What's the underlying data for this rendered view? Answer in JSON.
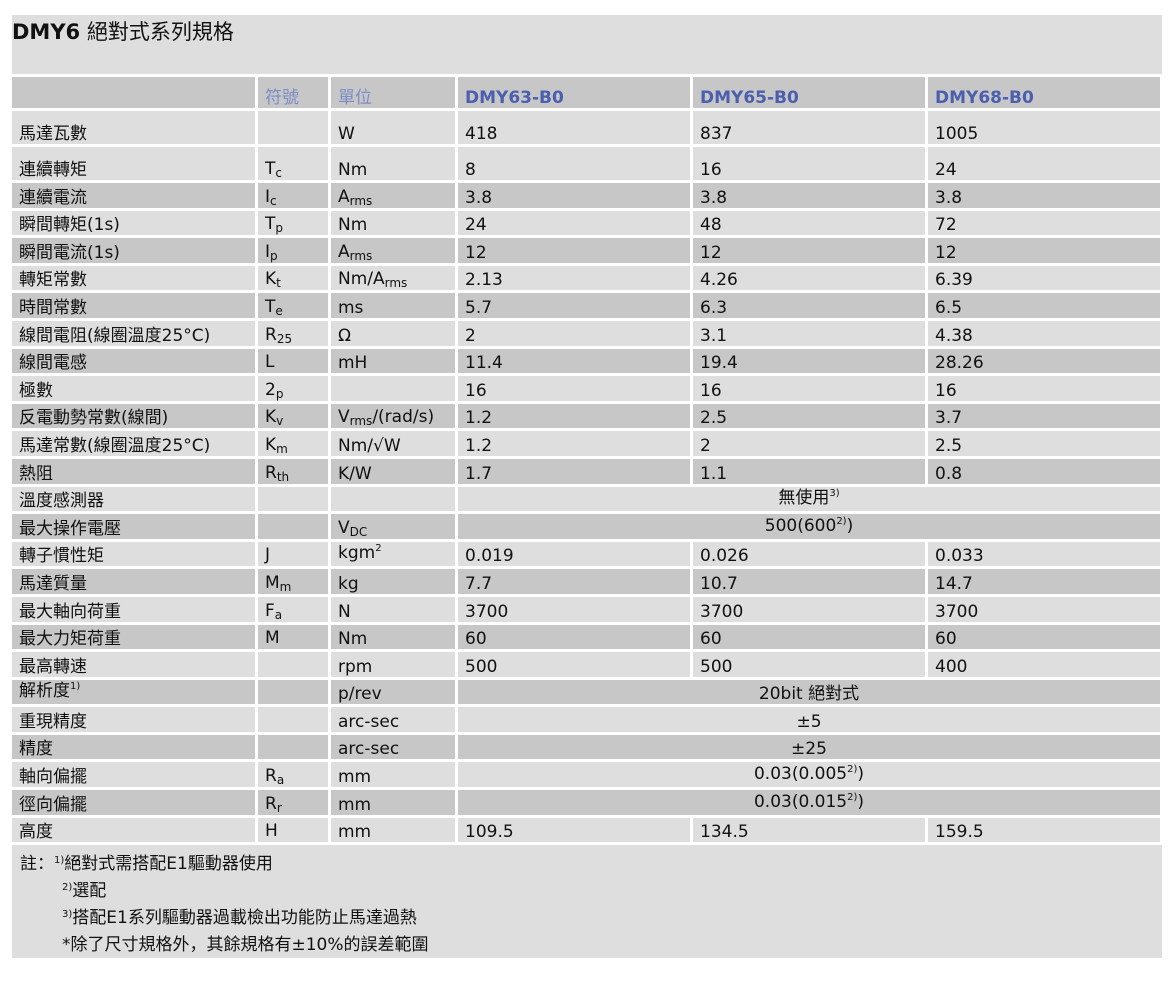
{
  "title": {
    "model": "DMY6",
    "text": "絕對式系列規格"
  },
  "header": {
    "symbol": "符號",
    "unit": "單位",
    "models": [
      "DMY63-B0",
      "DMY65-B0",
      "DMY68-B0"
    ]
  },
  "rows": [
    {
      "label": "馬達瓦數",
      "sym": "",
      "sym_sub": "",
      "unit": "W",
      "values": [
        "418",
        "837",
        "1005"
      ]
    },
    {
      "label": "連續轉矩",
      "sym": "T",
      "sym_sub": "c",
      "unit": "Nm",
      "values": [
        "8",
        "16",
        "24"
      ]
    },
    {
      "label": "連續電流",
      "sym": "I",
      "sym_sub": "c",
      "unit": "A",
      "unit_sub": "rms",
      "values": [
        "3.8",
        "3.8",
        "3.8"
      ]
    },
    {
      "label": "瞬間轉矩(1s)",
      "sym": "T",
      "sym_sub": "p",
      "unit": "Nm",
      "values": [
        "24",
        "48",
        "72"
      ]
    },
    {
      "label": "瞬間電流(1s)",
      "sym": "I",
      "sym_sub": "p",
      "unit": "A",
      "unit_sub": "rms",
      "values": [
        "12",
        "12",
        "12"
      ]
    },
    {
      "label": "轉矩常數",
      "sym": "K",
      "sym_sub": "t",
      "unit": "Nm/A",
      "unit_sub": "rms",
      "values": [
        "2.13",
        "4.26",
        "6.39"
      ]
    },
    {
      "label": "時間常數",
      "sym": "T",
      "sym_sub": "e",
      "unit": "ms",
      "values": [
        "5.7",
        "6.3",
        "6.5"
      ]
    },
    {
      "label": "線間電阻(線圈溫度25°C)",
      "sym": "R",
      "sym_sub": "25",
      "unit": "Ω",
      "values": [
        "2",
        "3.1",
        "4.38"
      ]
    },
    {
      "label": "線間電感",
      "sym": "L",
      "sym_sub": "",
      "unit": "mH",
      "values": [
        "11.4",
        "19.4",
        "28.26"
      ]
    },
    {
      "label": "極數",
      "sym": "2",
      "sym_sub": "p",
      "unit": "",
      "values": [
        "16",
        "16",
        "16"
      ]
    },
    {
      "label": "反電動勢常數(線間)",
      "sym": "K",
      "sym_sub": "v",
      "unit": "V",
      "unit_sub": "rms",
      "unit_tail": "/(rad/s)",
      "values": [
        "1.2",
        "2.5",
        "3.7"
      ]
    },
    {
      "label": "馬達常數(線圈溫度25°C)",
      "sym": "K",
      "sym_sub": "m",
      "unit": "Nm/√W",
      "values": [
        "1.2",
        "2",
        "2.5"
      ]
    },
    {
      "label": "熱阻",
      "sym": "R",
      "sym_sub": "th",
      "unit": "K/W",
      "values": [
        "1.7",
        "1.1",
        "0.8"
      ]
    },
    {
      "label": "溫度感測器",
      "sym": "",
      "sym_sub": "",
      "unit": "",
      "merged": {
        "text": "無使用",
        "sup": "3)",
        "tail": ""
      }
    },
    {
      "label": "最大操作電壓",
      "sym": "",
      "sym_sub": "",
      "unit": "V",
      "unit_sub": "DC",
      "merged": {
        "text": "500(600",
        "sup": "2)",
        "tail": ")"
      }
    },
    {
      "label": "轉子慣性矩",
      "sym": "J",
      "sym_sub": "",
      "unit": "kgm",
      "unit_sup": "2",
      "values": [
        "0.019",
        "0.026",
        "0.033"
      ]
    },
    {
      "label": "馬達質量",
      "sym": "M",
      "sym_sub": "m",
      "unit": "kg",
      "values": [
        "7.7",
        "10.7",
        "14.7"
      ]
    },
    {
      "label": "最大軸向荷重",
      "sym": "F",
      "sym_sub": "a",
      "unit": "N",
      "values": [
        "3700",
        "3700",
        "3700"
      ]
    },
    {
      "label": "最大力矩荷重",
      "sym": "M",
      "sym_sub": "",
      "unit": "Nm",
      "values": [
        "60",
        "60",
        "60"
      ]
    },
    {
      "label": "最高轉速",
      "sym": "",
      "sym_sub": "",
      "unit": "rpm",
      "values": [
        "500",
        "500",
        "400"
      ]
    },
    {
      "label": "解析度",
      "label_sup": "1)",
      "sym": "",
      "sym_sub": "",
      "unit": "p/rev",
      "merged": {
        "text": "20bit 絕對式",
        "sup": "",
        "tail": ""
      }
    },
    {
      "label": "重現精度",
      "sym": "",
      "sym_sub": "",
      "unit": "arc-sec",
      "merged": {
        "text": "±5",
        "sup": "",
        "tail": ""
      }
    },
    {
      "label": "精度",
      "sym": "",
      "sym_sub": "",
      "unit": "arc-sec",
      "merged": {
        "text": "±25",
        "sup": "",
        "tail": ""
      }
    },
    {
      "label": "軸向偏擺",
      "sym": "R",
      "sym_sub": "a",
      "unit": "mm",
      "merged": {
        "text": "0.03(0.005",
        "sup": "2)",
        "tail": ")"
      }
    },
    {
      "label": "徑向偏擺",
      "sym": "R",
      "sym_sub": "r",
      "unit": "mm",
      "merged": {
        "text": "0.03(0.015",
        "sup": "2)",
        "tail": ")"
      }
    },
    {
      "label": "高度",
      "sym": "H",
      "sym_sub": "",
      "unit": "mm",
      "values": [
        "109.5",
        "134.5",
        "159.5"
      ]
    }
  ],
  "notes": {
    "prefix": "註：",
    "items": [
      {
        "mark": "1)",
        "text": "絕對式需搭配E1驅動器使用"
      },
      {
        "mark": "2)",
        "text": "選配"
      },
      {
        "mark": "3)",
        "text": "搭配E1系列驅動器過載檢出功能防止馬達過熱"
      }
    ],
    "tolerance": "*除了尺寸規格外，其餘規格有±10%的誤差範圍"
  },
  "colors": {
    "row_light": "#dedede",
    "row_dark": "#c7c7c7",
    "model_header": "#4b5fae",
    "label_header": "#7c8dc6"
  }
}
